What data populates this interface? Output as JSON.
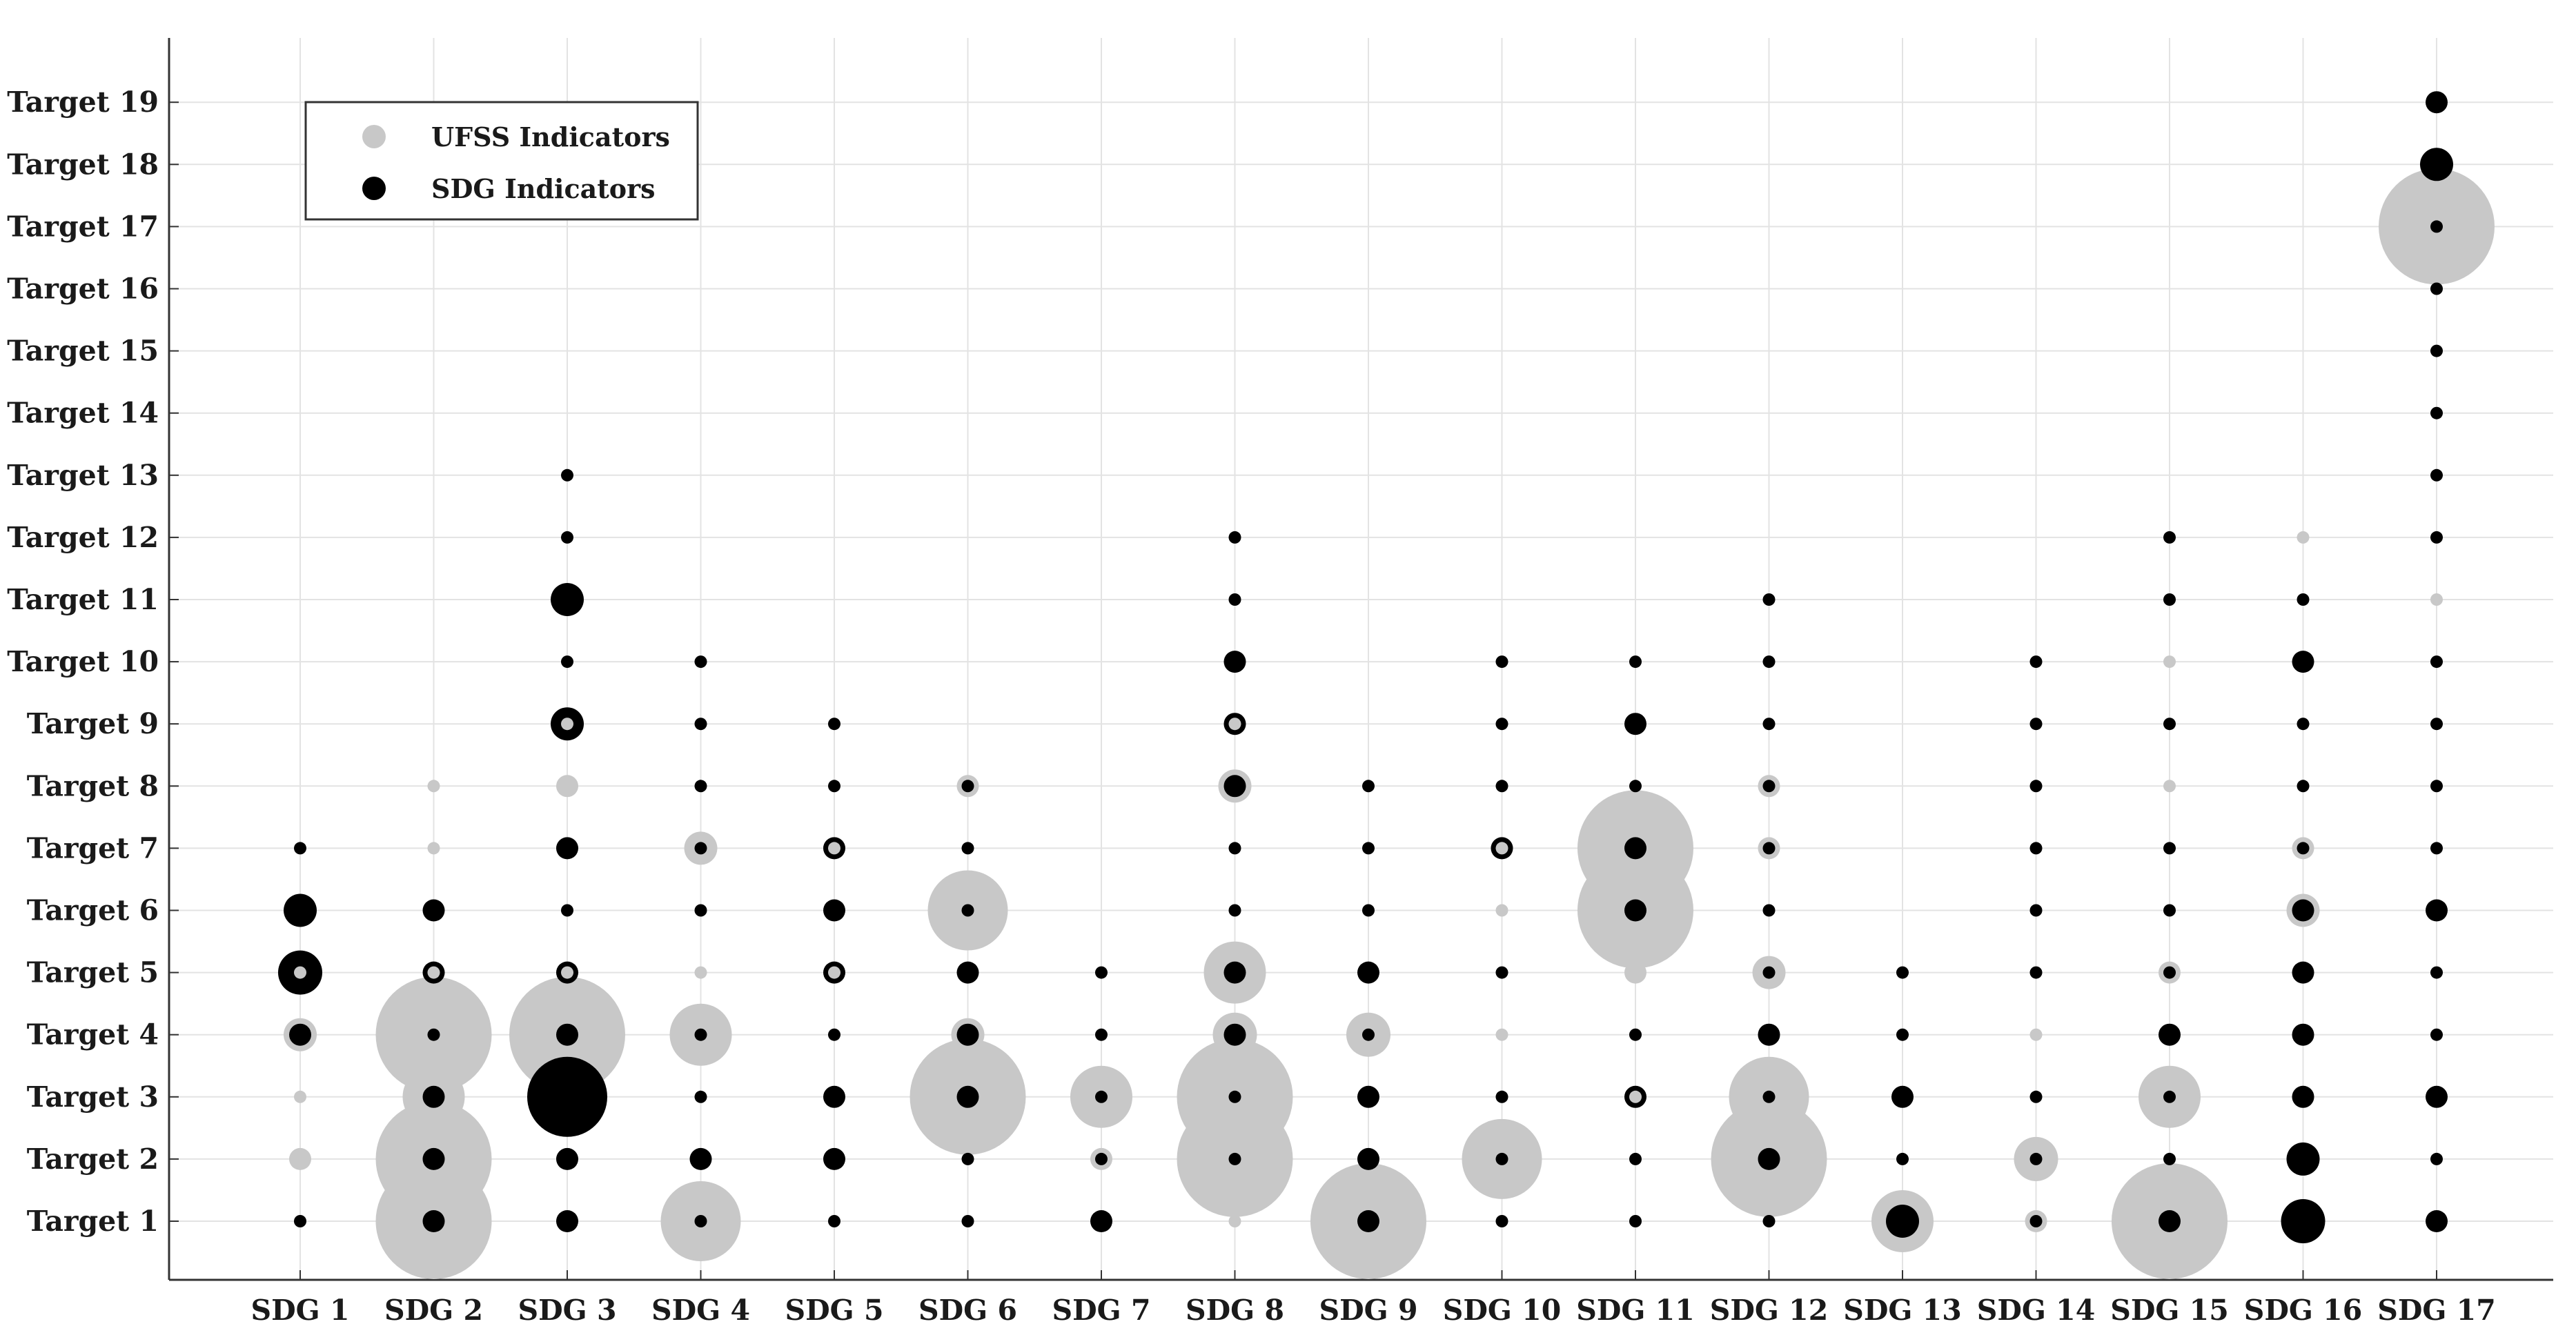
{
  "chart_data": {
    "type": "scatter",
    "categories": [
      "SDG 1",
      "SDG 2",
      "SDG 3",
      "SDG 4",
      "SDG 5",
      "SDG 6",
      "SDG 7",
      "SDG 8",
      "SDG 9",
      "SDG 10",
      "SDG 11",
      "SDG 12",
      "SDG 13",
      "SDG 14",
      "SDG 15",
      "SDG 16",
      "SDG 17"
    ],
    "y_categories": [
      "Target 1",
      "Target 2",
      "Target 3",
      "Target 4",
      "Target 5",
      "Target 6",
      "Target 7",
      "Target 8",
      "Target 9",
      "Target 10",
      "Target 11",
      "Target 12",
      "Target 13",
      "Target 14",
      "Target 15",
      "Target 16",
      "Target 17",
      "Target 18",
      "Target 19"
    ],
    "grid": true,
    "legend_position": "top-left",
    "colors": {
      "ufss": "#c8c8c8",
      "sdg": "#000000",
      "axis": "#333333",
      "grid": "#e3e3e3"
    },
    "series": [
      {
        "name": "UFSS Indicators",
        "points": [
          [
            1,
            1,
            1
          ],
          [
            1,
            2,
            2
          ],
          [
            1,
            3,
            1
          ],
          [
            1,
            4,
            3
          ],
          [
            2,
            1,
            8
          ],
          [
            2,
            2,
            8
          ],
          [
            2,
            3,
            5
          ],
          [
            2,
            4,
            8
          ],
          [
            2,
            5,
            2
          ],
          [
            2,
            7,
            1
          ],
          [
            2,
            8,
            1
          ],
          [
            3,
            4,
            8
          ],
          [
            3,
            5,
            2
          ],
          [
            3,
            8,
            2
          ],
          [
            3,
            9,
            2
          ],
          [
            4,
            1,
            6
          ],
          [
            4,
            4,
            5
          ],
          [
            4,
            5,
            1
          ],
          [
            4,
            7,
            3
          ],
          [
            5,
            5,
            2
          ],
          [
            5,
            7,
            2
          ],
          [
            6,
            3,
            8
          ],
          [
            6,
            4,
            3
          ],
          [
            6,
            6,
            6
          ],
          [
            6,
            8,
            2
          ],
          [
            7,
            2,
            2
          ],
          [
            7,
            3,
            5
          ],
          [
            8,
            1,
            1
          ],
          [
            8,
            2,
            8
          ],
          [
            8,
            3,
            8
          ],
          [
            8,
            4,
            4
          ],
          [
            8,
            5,
            5
          ],
          [
            8,
            8,
            3
          ],
          [
            8,
            9,
            2
          ],
          [
            9,
            1,
            8
          ],
          [
            9,
            4,
            4
          ],
          [
            10,
            2,
            6
          ],
          [
            10,
            3,
            1
          ],
          [
            10,
            4,
            1
          ],
          [
            10,
            6,
            1
          ],
          [
            10,
            7,
            2
          ],
          [
            11,
            1,
            1
          ],
          [
            11,
            3,
            2
          ],
          [
            11,
            4,
            1
          ],
          [
            11,
            5,
            2
          ],
          [
            11,
            6,
            8
          ],
          [
            11,
            7,
            8
          ],
          [
            12,
            2,
            8
          ],
          [
            12,
            3,
            6
          ],
          [
            12,
            4,
            2
          ],
          [
            12,
            5,
            3
          ],
          [
            12,
            7,
            2
          ],
          [
            12,
            8,
            2
          ],
          [
            13,
            1,
            5
          ],
          [
            14,
            1,
            2
          ],
          [
            14,
            2,
            4
          ],
          [
            14,
            4,
            1
          ],
          [
            15,
            1,
            8
          ],
          [
            15,
            3,
            5
          ],
          [
            15,
            5,
            2
          ],
          [
            15,
            8,
            1
          ],
          [
            15,
            10,
            1
          ],
          [
            16,
            3,
            2
          ],
          [
            16,
            6,
            3
          ],
          [
            16,
            7,
            2
          ],
          [
            16,
            12,
            1
          ],
          [
            17,
            11,
            1
          ],
          [
            17,
            17,
            8
          ]
        ]
      },
      {
        "name": "SDG Indicators",
        "points": [
          [
            1,
            1,
            1
          ],
          [
            1,
            4,
            2
          ],
          [
            1,
            5,
            4
          ],
          [
            1,
            6,
            3
          ],
          [
            1,
            7,
            1
          ],
          [
            2,
            1,
            2
          ],
          [
            2,
            2,
            2
          ],
          [
            2,
            3,
            2
          ],
          [
            2,
            4,
            1
          ],
          [
            2,
            5,
            2
          ],
          [
            2,
            6,
            2
          ],
          [
            3,
            1,
            2
          ],
          [
            3,
            2,
            2
          ],
          [
            3,
            3,
            6
          ],
          [
            3,
            4,
            2
          ],
          [
            3,
            5,
            2
          ],
          [
            3,
            6,
            1
          ],
          [
            3,
            7,
            2
          ],
          [
            3,
            9,
            3
          ],
          [
            3,
            10,
            1
          ],
          [
            3,
            11,
            3
          ],
          [
            3,
            12,
            1
          ],
          [
            3,
            13,
            1
          ],
          [
            4,
            1,
            1
          ],
          [
            4,
            2,
            2
          ],
          [
            4,
            3,
            1
          ],
          [
            4,
            4,
            1
          ],
          [
            4,
            6,
            1
          ],
          [
            4,
            7,
            1
          ],
          [
            4,
            8,
            1
          ],
          [
            4,
            9,
            1
          ],
          [
            4,
            10,
            1
          ],
          [
            5,
            1,
            1
          ],
          [
            5,
            2,
            2
          ],
          [
            5,
            3,
            2
          ],
          [
            5,
            4,
            1
          ],
          [
            5,
            5,
            2
          ],
          [
            5,
            6,
            2
          ],
          [
            5,
            7,
            2
          ],
          [
            5,
            8,
            1
          ],
          [
            5,
            9,
            1
          ],
          [
            6,
            1,
            1
          ],
          [
            6,
            2,
            1
          ],
          [
            6,
            3,
            2
          ],
          [
            6,
            4,
            2
          ],
          [
            6,
            5,
            2
          ],
          [
            6,
            6,
            1
          ],
          [
            6,
            7,
            1
          ],
          [
            6,
            8,
            1
          ],
          [
            7,
            1,
            2
          ],
          [
            7,
            2,
            1
          ],
          [
            7,
            3,
            1
          ],
          [
            7,
            4,
            1
          ],
          [
            7,
            5,
            1
          ],
          [
            8,
            2,
            1
          ],
          [
            8,
            3,
            1
          ],
          [
            8,
            4,
            2
          ],
          [
            8,
            5,
            2
          ],
          [
            8,
            6,
            1
          ],
          [
            8,
            7,
            1
          ],
          [
            8,
            8,
            2
          ],
          [
            8,
            9,
            2
          ],
          [
            8,
            10,
            2
          ],
          [
            8,
            11,
            1
          ],
          [
            8,
            12,
            1
          ],
          [
            9,
            1,
            2
          ],
          [
            9,
            2,
            2
          ],
          [
            9,
            3,
            2
          ],
          [
            9,
            4,
            1
          ],
          [
            9,
            5,
            2
          ],
          [
            9,
            6,
            1
          ],
          [
            9,
            7,
            1
          ],
          [
            9,
            8,
            1
          ],
          [
            10,
            1,
            1
          ],
          [
            10,
            2,
            1
          ],
          [
            10,
            3,
            1
          ],
          [
            10,
            5,
            1
          ],
          [
            10,
            7,
            2
          ],
          [
            10,
            8,
            1
          ],
          [
            10,
            9,
            1
          ],
          [
            10,
            10,
            1
          ],
          [
            11,
            1,
            1
          ],
          [
            11,
            2,
            1
          ],
          [
            11,
            3,
            2
          ],
          [
            11,
            4,
            1
          ],
          [
            11,
            6,
            2
          ],
          [
            11,
            7,
            2
          ],
          [
            11,
            8,
            1
          ],
          [
            11,
            9,
            2
          ],
          [
            11,
            10,
            1
          ],
          [
            12,
            1,
            1
          ],
          [
            12,
            2,
            2
          ],
          [
            12,
            3,
            1
          ],
          [
            12,
            4,
            2
          ],
          [
            12,
            5,
            1
          ],
          [
            12,
            6,
            1
          ],
          [
            12,
            7,
            1
          ],
          [
            12,
            8,
            1
          ],
          [
            12,
            9,
            1
          ],
          [
            12,
            10,
            1
          ],
          [
            12,
            11,
            1
          ],
          [
            13,
            1,
            3
          ],
          [
            13,
            2,
            1
          ],
          [
            13,
            3,
            2
          ],
          [
            13,
            4,
            1
          ],
          [
            13,
            5,
            1
          ],
          [
            14,
            1,
            1
          ],
          [
            14,
            2,
            1
          ],
          [
            14,
            3,
            1
          ],
          [
            14,
            5,
            1
          ],
          [
            14,
            6,
            1
          ],
          [
            14,
            7,
            1
          ],
          [
            14,
            8,
            1
          ],
          [
            14,
            9,
            1
          ],
          [
            14,
            10,
            1
          ],
          [
            15,
            1,
            2
          ],
          [
            15,
            2,
            1
          ],
          [
            15,
            3,
            1
          ],
          [
            15,
            4,
            2
          ],
          [
            15,
            5,
            1
          ],
          [
            15,
            6,
            1
          ],
          [
            15,
            7,
            1
          ],
          [
            15,
            9,
            1
          ],
          [
            15,
            11,
            1
          ],
          [
            15,
            12,
            1
          ],
          [
            16,
            1,
            4
          ],
          [
            16,
            2,
            3
          ],
          [
            16,
            3,
            2
          ],
          [
            16,
            4,
            2
          ],
          [
            16,
            5,
            2
          ],
          [
            16,
            6,
            2
          ],
          [
            16,
            7,
            1
          ],
          [
            16,
            8,
            1
          ],
          [
            16,
            9,
            1
          ],
          [
            16,
            10,
            2
          ],
          [
            16,
            11,
            1
          ],
          [
            17,
            1,
            2
          ],
          [
            17,
            2,
            1
          ],
          [
            17,
            3,
            2
          ],
          [
            17,
            4,
            1
          ],
          [
            17,
            5,
            1
          ],
          [
            17,
            6,
            2
          ],
          [
            17,
            7,
            1
          ],
          [
            17,
            8,
            1
          ],
          [
            17,
            9,
            1
          ],
          [
            17,
            10,
            1
          ],
          [
            17,
            12,
            1
          ],
          [
            17,
            13,
            1
          ],
          [
            17,
            14,
            1
          ],
          [
            17,
            15,
            1
          ],
          [
            17,
            16,
            1
          ],
          [
            17,
            17,
            1
          ],
          [
            17,
            18,
            3
          ],
          [
            17,
            19,
            2
          ]
        ]
      }
    ]
  }
}
